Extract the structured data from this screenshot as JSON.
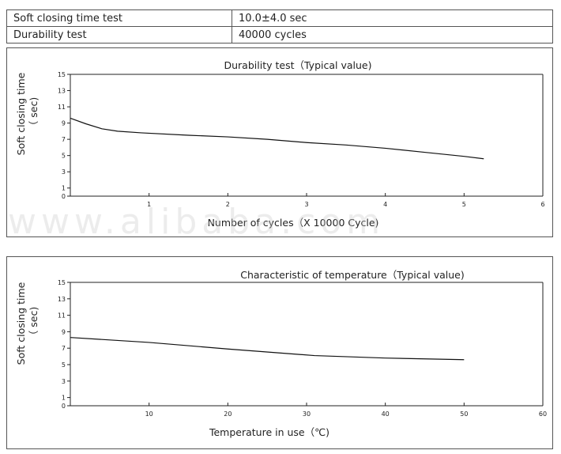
{
  "table": {
    "rows": [
      {
        "label": "Soft closing time test",
        "value": "10.0±4.0 sec"
      },
      {
        "label": "Durability test",
        "value": "40000 cycles"
      }
    ]
  },
  "watermark": "www.alibaba.com",
  "chart_data": [
    {
      "type": "line",
      "title": "Durability test（Typical value)",
      "xlabel": "Number of cycles（X 10000 Cycle)",
      "ylabel": "Soft closing time\n（ sec)",
      "xlim": [
        0,
        6
      ],
      "ylim": [
        0,
        15
      ],
      "xticks": [
        1,
        2,
        3,
        4,
        5,
        6
      ],
      "yticks": [
        0,
        1,
        3,
        5,
        7,
        9,
        11,
        13,
        15
      ],
      "series": [
        {
          "x": [
            0,
            0.2,
            0.4,
            0.6,
            0.9,
            1.5,
            2.0,
            2.5,
            3.0,
            3.5,
            4.0,
            4.5,
            5.0,
            5.25
          ],
          "y": [
            9.6,
            8.9,
            8.3,
            8.0,
            7.8,
            7.5,
            7.3,
            7.0,
            6.6,
            6.3,
            5.9,
            5.4,
            4.9,
            4.6
          ]
        }
      ]
    },
    {
      "type": "line",
      "title": "Characteristic of temperature（Typical value)",
      "xlabel": "Temperature in use（℃)",
      "ylabel": "Soft closing time\n（ sec)",
      "xlim": [
        0,
        60
      ],
      "ylim": [
        0,
        15
      ],
      "xticks": [
        10,
        20,
        30,
        40,
        50,
        60
      ],
      "yticks": [
        0,
        1,
        3,
        5,
        7,
        9,
        11,
        13,
        15
      ],
      "series": [
        {
          "x": [
            0,
            10,
            20,
            31,
            40,
            50
          ],
          "y": [
            8.3,
            7.7,
            6.9,
            6.1,
            5.8,
            5.6
          ]
        }
      ]
    }
  ]
}
